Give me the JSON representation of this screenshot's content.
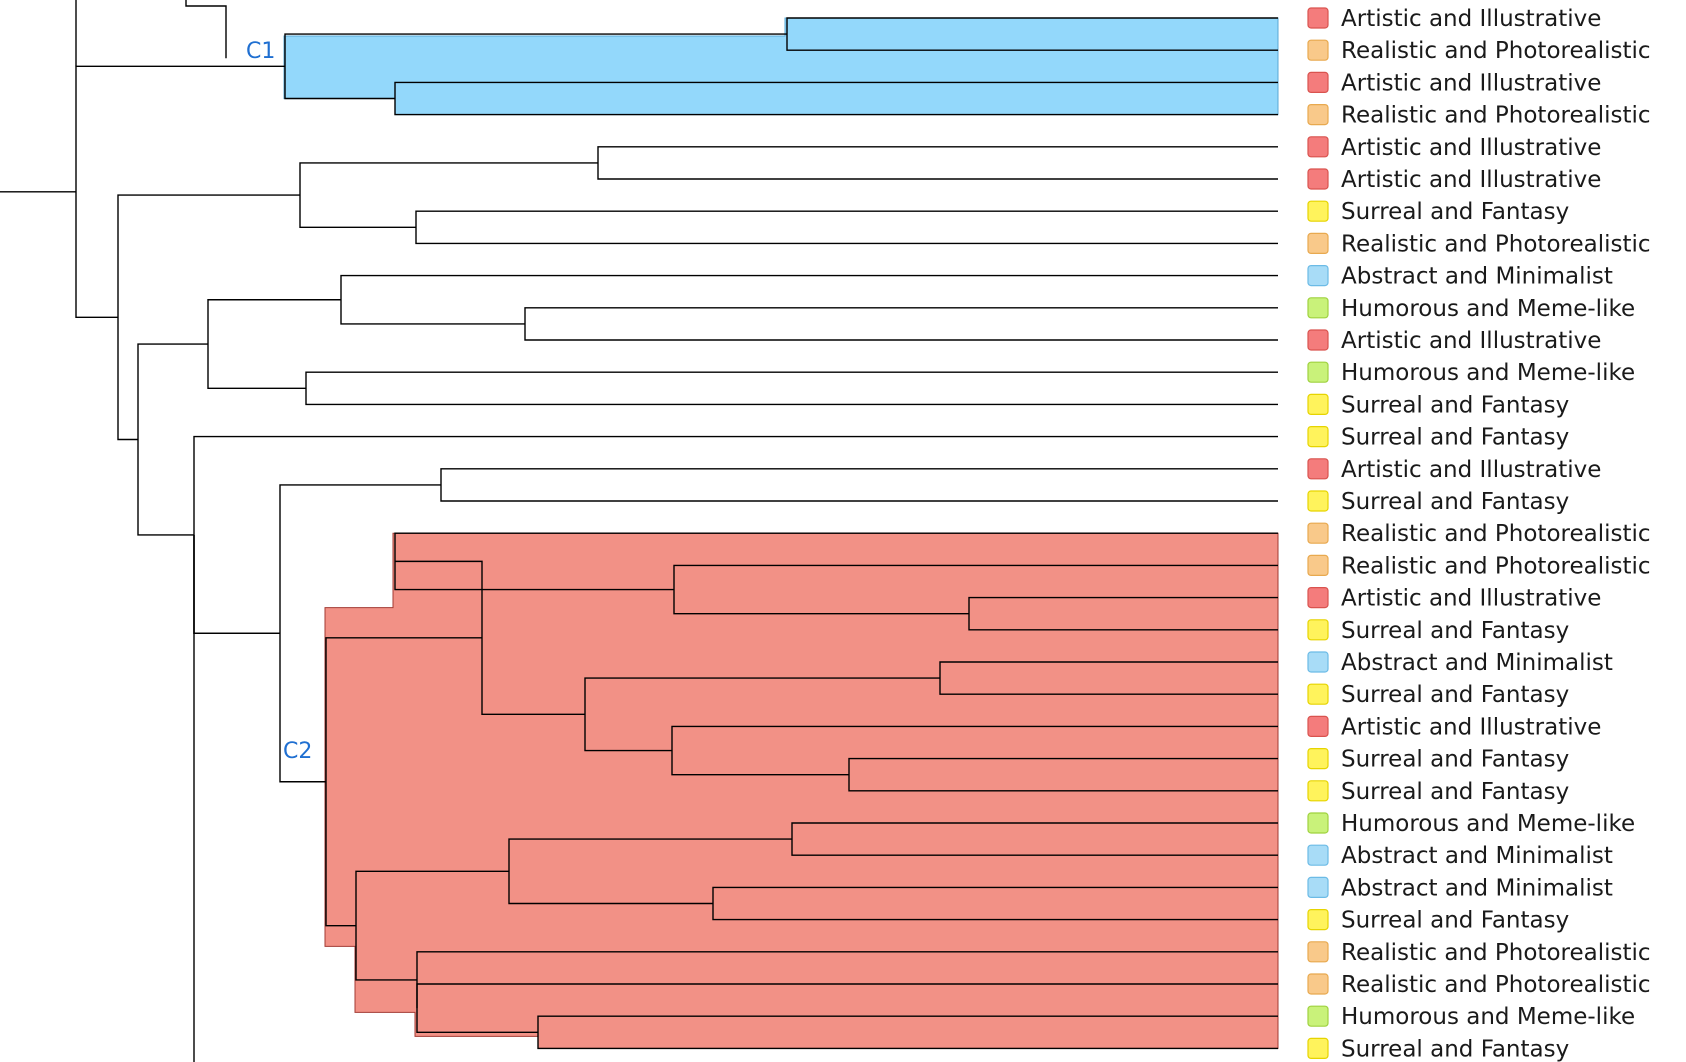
{
  "categories": {
    "artistic": {
      "label": "Artistic and Illustrative",
      "color": "#f47c7c",
      "border": "#d9534f"
    },
    "realistic": {
      "label": "Realistic and Photorealistic",
      "color": "#f9c98a",
      "border": "#e8a94f"
    },
    "surreal": {
      "label": "Surreal and Fantasy",
      "color": "#fff35c",
      "border": "#e6d400"
    },
    "abstract": {
      "label": "Abstract and Minimalist",
      "color": "#a8dcf7",
      "border": "#6cbbe6"
    },
    "humorous": {
      "label": "Humorous and Meme-like",
      "color": "#c9f27a",
      "border": "#9fd23f"
    }
  },
  "leaves": [
    {
      "label": "Artistic and Illustrative",
      "category": "artistic"
    },
    {
      "label": "Realistic and Photorealistic",
      "category": "realistic"
    },
    {
      "label": "Artistic and Illustrative",
      "category": "artistic"
    },
    {
      "label": "Realistic and Photorealistic",
      "category": "realistic"
    },
    {
      "label": "Artistic and Illustrative",
      "category": "artistic"
    },
    {
      "label": "Artistic and Illustrative",
      "category": "artistic"
    },
    {
      "label": "Surreal and Fantasy",
      "category": "surreal"
    },
    {
      "label": "Realistic and Photorealistic",
      "category": "realistic"
    },
    {
      "label": "Abstract and Minimalist",
      "category": "abstract"
    },
    {
      "label": "Humorous and Meme-like",
      "category": "humorous"
    },
    {
      "label": "Artistic and Illustrative",
      "category": "artistic"
    },
    {
      "label": "Humorous and Meme-like",
      "category": "humorous"
    },
    {
      "label": "Surreal and Fantasy",
      "category": "surreal"
    },
    {
      "label": "Surreal and Fantasy",
      "category": "surreal"
    },
    {
      "label": "Artistic and Illustrative",
      "category": "artistic"
    },
    {
      "label": "Surreal and Fantasy",
      "category": "surreal"
    },
    {
      "label": "Realistic and Photorealistic",
      "category": "realistic"
    },
    {
      "label": "Realistic and Photorealistic",
      "category": "realistic"
    },
    {
      "label": "Artistic and Illustrative",
      "category": "artistic"
    },
    {
      "label": "Surreal and Fantasy",
      "category": "surreal"
    },
    {
      "label": "Abstract and Minimalist",
      "category": "abstract"
    },
    {
      "label": "Surreal and Fantasy",
      "category": "surreal"
    },
    {
      "label": "Artistic and Illustrative",
      "category": "artistic"
    },
    {
      "label": "Surreal and Fantasy",
      "category": "surreal"
    },
    {
      "label": "Surreal and Fantasy",
      "category": "surreal"
    },
    {
      "label": "Humorous and Meme-like",
      "category": "humorous"
    },
    {
      "label": "Abstract and Minimalist",
      "category": "abstract"
    },
    {
      "label": "Abstract and Minimalist",
      "category": "abstract"
    },
    {
      "label": "Surreal and Fantasy",
      "category": "surreal"
    },
    {
      "label": "Realistic and Photorealistic",
      "category": "realistic"
    },
    {
      "label": "Realistic and Photorealistic",
      "category": "realistic"
    },
    {
      "label": "Humorous and Meme-like",
      "category": "humorous"
    },
    {
      "label": "Surreal and Fantasy",
      "category": "surreal"
    }
  ],
  "clusters": [
    {
      "name": "C1",
      "leaf_range": [
        0,
        3
      ],
      "fill": "#93d8fb",
      "stroke": "#5aa9d6",
      "label_color": "#1f6fd1"
    },
    {
      "name": "C2",
      "leaf_range": [
        16,
        32
      ],
      "fill": "#f29186",
      "stroke": "#a33a33",
      "label_color": "#1f6fd1"
    }
  ]
}
